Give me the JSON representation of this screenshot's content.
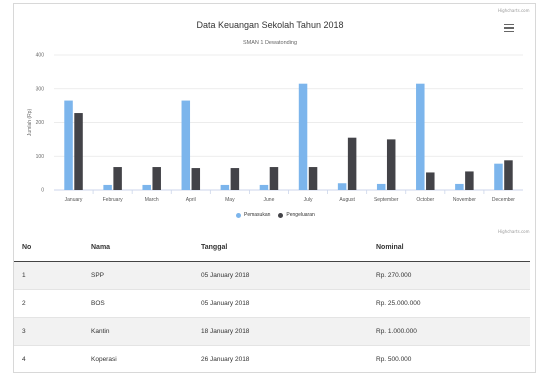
{
  "credits": "Highcharts.com",
  "chart_data": {
    "type": "bar",
    "title": "Data Keuangan Sekolah Tahun 2018",
    "subtitle": "SMAN 1 Dewatonding",
    "ylabel": "Jumlah (Rp)",
    "ylim": [
      0,
      400
    ],
    "yticks": [
      0,
      100,
      200,
      300,
      400
    ],
    "categories": [
      "January",
      "February",
      "March",
      "April",
      "May",
      "June",
      "July",
      "August",
      "September",
      "October",
      "November",
      "December"
    ],
    "series": [
      {
        "name": "Pemasukan",
        "color": "#7cb5ec",
        "values": [
          265,
          15,
          15,
          265,
          15,
          15,
          315,
          20,
          18,
          315,
          18,
          78
        ]
      },
      {
        "name": "Pengeluaran",
        "color": "#434348",
        "values": [
          228,
          68,
          68,
          65,
          65,
          68,
          68,
          155,
          150,
          52,
          55,
          88
        ]
      }
    ],
    "legend": "bottom-center",
    "grid": true
  },
  "table": {
    "headers": {
      "no": "No",
      "nama": "Nama",
      "tanggal": "Tanggal",
      "nominal": "Nominal"
    },
    "rows": [
      {
        "no": "1",
        "nama": "SPP",
        "tanggal": "05 January 2018",
        "nominal": "Rp. 270.000"
      },
      {
        "no": "2",
        "nama": "BOS",
        "tanggal": "05 January 2018",
        "nominal": "Rp. 25.000.000"
      },
      {
        "no": "3",
        "nama": "Kantin",
        "tanggal": "18 January 2018",
        "nominal": "Rp. 1.000.000"
      },
      {
        "no": "4",
        "nama": "Koperasi",
        "tanggal": "26 January 2018",
        "nominal": "Rp. 500.000"
      }
    ]
  },
  "icons": {
    "menu": "hamburger-menu-icon"
  }
}
